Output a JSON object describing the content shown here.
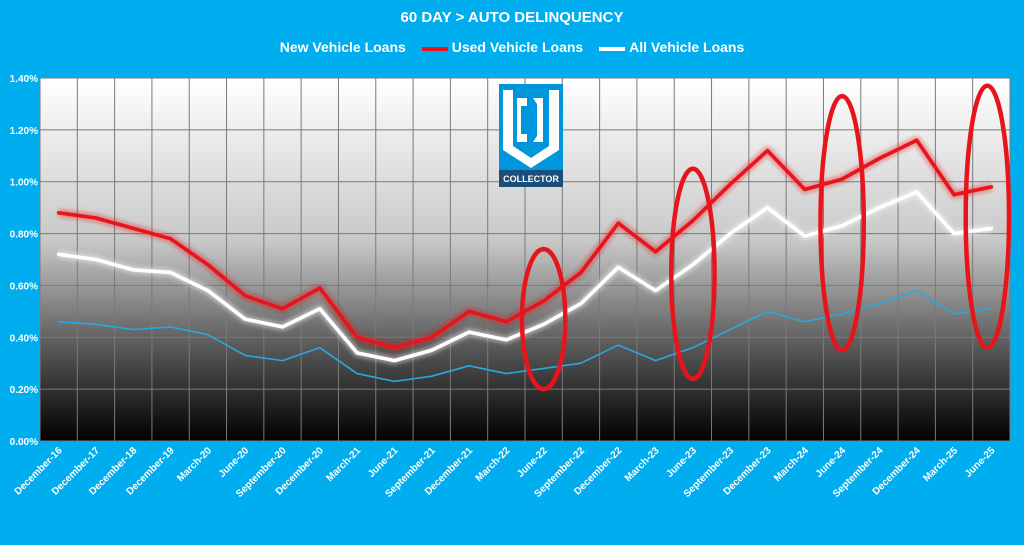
{
  "chart_data": {
    "type": "line",
    "title": "60 DAY > AUTO DELINQUENCY",
    "xlabel": "",
    "ylabel": "",
    "ylim": [
      0,
      1.4
    ],
    "ytick_labels": [
      "0.00%",
      "0.20%",
      "0.40%",
      "0.60%",
      "0.80%",
      "1.00%",
      "1.20%",
      "1.40%"
    ],
    "yticks": [
      0,
      0.2,
      0.4,
      0.6,
      0.8,
      1.0,
      1.2,
      1.4
    ],
    "grid": true,
    "legend_position": "top-center",
    "x": [
      "December-16",
      "December-17",
      "December-18",
      "December-19",
      "March-20",
      "June-20",
      "September-20",
      "December-20",
      "March-21",
      "June-21",
      "September-21",
      "December-21",
      "March-22",
      "June-22",
      "September-22",
      "December-22",
      "March-23",
      "June-23",
      "September-23",
      "December-23",
      "March-24",
      "June-24",
      "September-24",
      "December-24",
      "March-25",
      "June-25"
    ],
    "series": [
      {
        "name": "New Vehicle Loans",
        "color": "#29a8e0",
        "values": [
          0.46,
          0.45,
          0.43,
          0.44,
          0.41,
          0.33,
          0.31,
          0.36,
          0.26,
          0.23,
          0.25,
          0.29,
          0.26,
          0.28,
          0.3,
          0.37,
          0.31,
          0.36,
          0.43,
          0.5,
          0.46,
          0.49,
          0.53,
          0.58,
          0.49,
          0.51
        ]
      },
      {
        "name": "Used Vehicle Loans",
        "color": "#e8141b",
        "values": [
          0.88,
          0.86,
          0.82,
          0.78,
          0.68,
          0.56,
          0.51,
          0.59,
          0.4,
          0.36,
          0.4,
          0.5,
          0.46,
          0.54,
          0.65,
          0.84,
          0.73,
          0.85,
          0.99,
          1.12,
          0.97,
          1.01,
          1.09,
          1.16,
          0.95,
          0.98
        ]
      },
      {
        "name": "All Vehicle Loans",
        "color": "#ffffff",
        "values": [
          0.72,
          0.7,
          0.66,
          0.65,
          0.58,
          0.47,
          0.44,
          0.51,
          0.34,
          0.31,
          0.35,
          0.42,
          0.39,
          0.45,
          0.53,
          0.67,
          0.58,
          0.68,
          0.8,
          0.9,
          0.79,
          0.83,
          0.9,
          0.96,
          0.8,
          0.82
        ]
      }
    ],
    "annotations": [
      {
        "type": "ellipse",
        "color": "#e8141b",
        "around": "June-22",
        "ymin": 0.2,
        "ymax": 0.74
      },
      {
        "type": "ellipse",
        "color": "#e8141b",
        "around": "June-23",
        "ymin": 0.24,
        "ymax": 1.05
      },
      {
        "type": "ellipse",
        "color": "#e8141b",
        "around": "June-24",
        "ymin": 0.35,
        "ymax": 1.33
      },
      {
        "type": "ellipse",
        "color": "#e8141b",
        "around": "June-25",
        "ymin": 0.36,
        "ymax": 1.37
      }
    ]
  },
  "logo": {
    "letters": "CU",
    "caption": "COLLECTOR"
  }
}
